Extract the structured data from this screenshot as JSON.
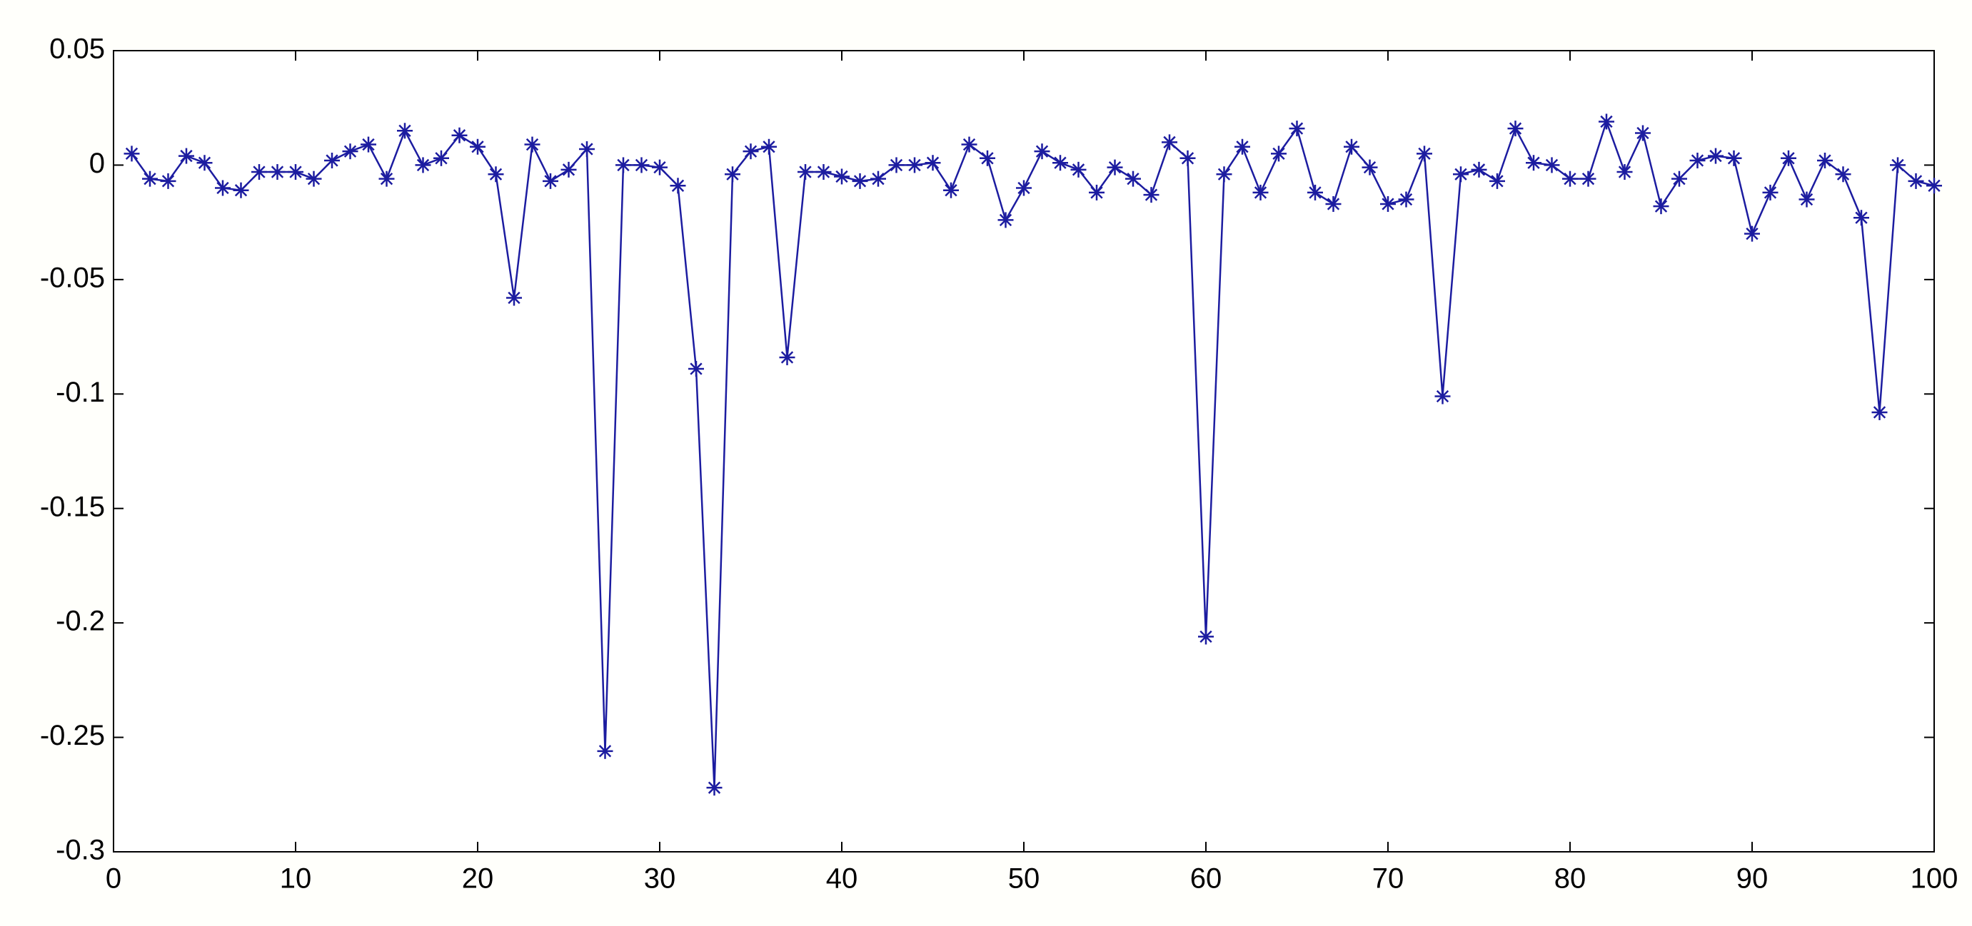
{
  "chart_data": {
    "type": "line",
    "color": "#1c1ca0",
    "marker": "*",
    "x": [
      1,
      2,
      3,
      4,
      5,
      6,
      7,
      8,
      9,
      10,
      11,
      12,
      13,
      14,
      15,
      16,
      17,
      18,
      19,
      20,
      21,
      22,
      23,
      24,
      25,
      26,
      27,
      28,
      29,
      30,
      31,
      32,
      33,
      34,
      35,
      36,
      37,
      38,
      39,
      40,
      41,
      42,
      43,
      44,
      45,
      46,
      47,
      48,
      49,
      50,
      51,
      52,
      53,
      54,
      55,
      56,
      57,
      58,
      59,
      60,
      61,
      62,
      63,
      64,
      65,
      66,
      67,
      68,
      69,
      70,
      71,
      72,
      73,
      74,
      75,
      76,
      77,
      78,
      79,
      80,
      81,
      82,
      83,
      84,
      85,
      86,
      87,
      88,
      89,
      90,
      91,
      92,
      93,
      94,
      95,
      96,
      97,
      98,
      99,
      100
    ],
    "values": [
      0.005,
      -0.006,
      -0.007,
      0.004,
      0.001,
      -0.01,
      -0.011,
      -0.003,
      -0.003,
      -0.003,
      -0.006,
      0.002,
      0.006,
      0.009,
      -0.006,
      0.015,
      0.0,
      0.003,
      0.013,
      0.008,
      -0.004,
      -0.058,
      0.009,
      -0.007,
      -0.002,
      0.007,
      -0.256,
      0.0,
      0.0,
      -0.001,
      -0.009,
      -0.089,
      -0.272,
      -0.004,
      0.006,
      0.008,
      -0.084,
      -0.003,
      -0.003,
      -0.005,
      -0.007,
      -0.006,
      0.0,
      0.0,
      0.001,
      -0.011,
      0.009,
      0.003,
      -0.024,
      -0.01,
      0.006,
      0.001,
      -0.002,
      -0.012,
      -0.001,
      -0.006,
      -0.013,
      0.01,
      0.003,
      -0.206,
      -0.004,
      0.008,
      -0.012,
      0.005,
      0.016,
      -0.012,
      -0.017,
      0.008,
      -0.001,
      -0.017,
      -0.015,
      0.005,
      -0.101,
      -0.004,
      -0.002,
      -0.007,
      0.016,
      0.001,
      0.0,
      -0.006,
      -0.006,
      0.019,
      -0.003,
      0.014,
      -0.018,
      -0.006,
      0.002,
      0.004,
      0.003,
      -0.03,
      -0.012,
      0.003,
      -0.015,
      0.002,
      -0.004,
      -0.023,
      -0.108,
      0.0,
      -0.007,
      -0.009
    ],
    "xlim": [
      0,
      100
    ],
    "xticks": [
      0,
      10,
      20,
      30,
      40,
      50,
      60,
      70,
      80,
      90,
      100
    ],
    "ylim": [
      -0.3,
      0.05
    ],
    "yticks": [
      0.05,
      0,
      -0.05,
      -0.1,
      -0.15,
      -0.2,
      -0.25,
      -0.3
    ],
    "grid": false
  }
}
